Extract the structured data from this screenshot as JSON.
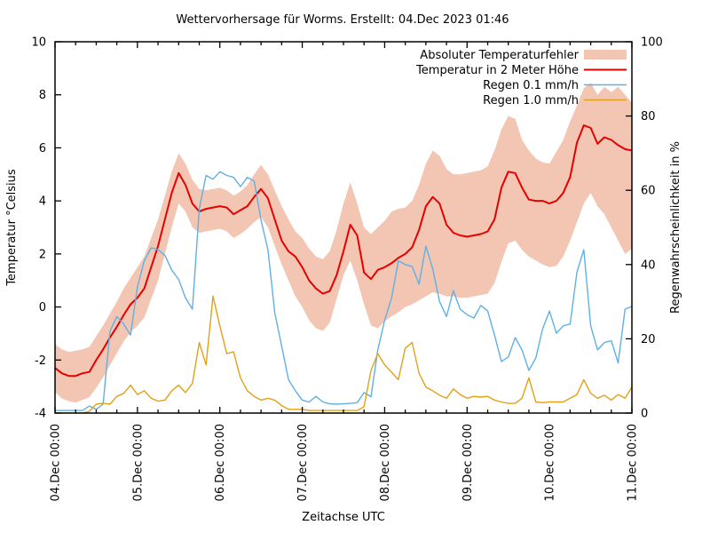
{
  "title": "Wettervorhersage für Worms. Erstellt: 04.Dec 2023 01:46",
  "colors": {
    "background": "#ffffff",
    "frame": "#000000",
    "error_band": "#f2c6b2",
    "temperature": "#e60000",
    "rain01": "#5fb0e6",
    "rain10": "#e2a117"
  },
  "chart_data": {
    "type": "line",
    "title": "Wettervorhersage für Worms. Erstellt: 04.Dec 2023 01:46",
    "xlabel": "Zeitachse UTC",
    "ylabel_left": "Temperatur °Celsius",
    "ylabel_right": "Regenwahrscheinlichkeit in %",
    "x_tick_labels": [
      "04.Dec 00:00",
      "05.Dec 00:00",
      "06.Dec 00:00",
      "07.Dec 00:00",
      "08.Dec 00:00",
      "09.Dec 00:00",
      "10.Dec 00:00",
      "11.Dec 00:00"
    ],
    "x_major_tick_hours": 24,
    "x_minor_tick_hours": 6,
    "x_range_hours": [
      0,
      168
    ],
    "y_left_ticks": [
      -4,
      -2,
      0,
      2,
      4,
      6,
      8,
      10
    ],
    "y_left_range": [
      -4,
      10
    ],
    "y_right_ticks": [
      0,
      20,
      40,
      60,
      80,
      100
    ],
    "y_right_range": [
      0,
      100
    ],
    "grid": false,
    "legend_position": "top-right-inside",
    "hours_step": 2,
    "series": [
      {
        "name": "Absoluter Temperaturfehler",
        "type": "band",
        "axis": "left",
        "color": "#f2c6b2",
        "upper": [
          -1.4,
          -1.6,
          -1.7,
          -1.65,
          -1.6,
          -1.5,
          -1.1,
          -0.7,
          -0.25,
          0.2,
          0.7,
          1.1,
          1.5,
          1.9,
          2.6,
          3.3,
          4.2,
          5.1,
          5.8,
          5.4,
          4.8,
          4.45,
          4.4,
          4.45,
          4.5,
          4.4,
          4.2,
          4.35,
          4.6,
          5.0,
          5.35,
          5.0,
          4.4,
          3.8,
          3.3,
          2.85,
          2.6,
          2.2,
          1.9,
          1.8,
          2.1,
          2.9,
          3.9,
          4.7,
          3.9,
          3.0,
          2.75,
          3.0,
          3.25,
          3.6,
          3.7,
          3.75,
          4.0,
          4.6,
          5.4,
          5.9,
          5.7,
          5.2,
          5.0,
          5.0,
          5.05,
          5.1,
          5.15,
          5.3,
          5.9,
          6.7,
          7.2,
          7.1,
          6.3,
          5.9,
          5.6,
          5.45,
          5.4,
          5.85,
          6.3,
          7.0,
          7.6,
          8.25,
          8.45,
          8.0,
          8.3,
          8.1,
          8.3,
          8.0,
          7.7
        ],
        "lower": [
          -3.2,
          -3.45,
          -3.55,
          -3.6,
          -3.5,
          -3.4,
          -3.05,
          -2.65,
          -2.2,
          -1.75,
          -1.3,
          -0.95,
          -0.7,
          -0.4,
          0.3,
          1.0,
          2.0,
          3.0,
          3.9,
          3.6,
          3.0,
          2.8,
          2.85,
          2.9,
          2.95,
          2.85,
          2.6,
          2.75,
          2.95,
          3.2,
          3.4,
          3.0,
          2.3,
          1.6,
          1.0,
          0.4,
          0.0,
          -0.5,
          -0.8,
          -0.9,
          -0.6,
          0.3,
          1.2,
          1.75,
          1.0,
          0.1,
          -0.7,
          -0.8,
          -0.55,
          -0.35,
          -0.2,
          0.0,
          0.1,
          0.25,
          0.4,
          0.55,
          0.5,
          0.4,
          0.4,
          0.35,
          0.35,
          0.4,
          0.45,
          0.5,
          0.9,
          1.7,
          2.4,
          2.5,
          2.15,
          1.9,
          1.75,
          1.6,
          1.5,
          1.55,
          1.9,
          2.5,
          3.2,
          3.9,
          4.3,
          3.8,
          3.5,
          3.0,
          2.5,
          2.0,
          2.2
        ]
      },
      {
        "name": "Temperatur in 2 Meter Höhe",
        "type": "line",
        "axis": "left",
        "color": "#e60000",
        "width": 2,
        "values": [
          -2.3,
          -2.5,
          -2.6,
          -2.6,
          -2.5,
          -2.45,
          -2.0,
          -1.6,
          -1.15,
          -0.75,
          -0.3,
          0.1,
          0.35,
          0.7,
          1.5,
          2.3,
          3.3,
          4.3,
          5.05,
          4.6,
          3.9,
          3.6,
          3.7,
          3.75,
          3.8,
          3.75,
          3.5,
          3.65,
          3.8,
          4.15,
          4.45,
          4.1,
          3.3,
          2.5,
          2.1,
          1.9,
          1.5,
          1.0,
          0.7,
          0.5,
          0.6,
          1.2,
          2.1,
          3.1,
          2.7,
          1.3,
          1.05,
          1.4,
          1.5,
          1.65,
          1.85,
          2.0,
          2.25,
          2.9,
          3.8,
          4.15,
          3.9,
          3.1,
          2.8,
          2.7,
          2.65,
          2.7,
          2.75,
          2.85,
          3.3,
          4.5,
          5.1,
          5.05,
          4.5,
          4.05,
          4.0,
          4.0,
          3.9,
          4.0,
          4.3,
          4.9,
          6.2,
          6.85,
          6.75,
          6.15,
          6.4,
          6.3,
          6.1,
          5.95,
          5.9
        ]
      },
      {
        "name": "Regen 0.1 mm/h",
        "type": "line",
        "axis": "right",
        "color": "#5fb0e6",
        "width": 1.4,
        "values": [
          0.7,
          0.7,
          0.7,
          0.7,
          0.7,
          1.9,
          1.0,
          2.4,
          22,
          26,
          24,
          21,
          34,
          41,
          44.5,
          44,
          42.5,
          38.5,
          36,
          31,
          28,
          55,
          64,
          63,
          65,
          64,
          63.5,
          61,
          63.5,
          62.5,
          52,
          44,
          27,
          18,
          9,
          6,
          3.5,
          3,
          4.5,
          3,
          2.5,
          2.4,
          2.5,
          2.6,
          2.8,
          5.5,
          4.4,
          17,
          25,
          31,
          41,
          40,
          39.5,
          34.7,
          45,
          38.8,
          30,
          26,
          33,
          28,
          26.5,
          25.6,
          29,
          27.5,
          21,
          13.9,
          15.1,
          20.3,
          17,
          11.5,
          14.8,
          22.7,
          27.5,
          21.5,
          23.5,
          24,
          38,
          44,
          23.5,
          17,
          19,
          19.5,
          13.5,
          28,
          28.7
        ]
      },
      {
        "name": "Regen 1.0 mm/h",
        "type": "line",
        "axis": "right",
        "color": "#e2a117",
        "width": 1.4,
        "values": [
          0,
          0,
          0,
          0,
          0,
          0.5,
          2.4,
          2.6,
          2.4,
          4.5,
          5.3,
          7.5,
          5,
          6,
          4,
          3.2,
          3.5,
          6,
          7.5,
          5.5,
          8,
          19,
          13,
          31.5,
          23.5,
          16,
          16.5,
          9.5,
          6,
          4.5,
          3.5,
          4,
          3.5,
          2,
          1,
          1,
          1,
          0.7,
          0.7,
          0.7,
          0.7,
          0.7,
          0.7,
          0.7,
          0.7,
          1.7,
          11.5,
          16,
          13,
          11,
          9,
          17.5,
          19,
          10.8,
          7,
          6,
          4.8,
          4,
          6.5,
          5,
          4,
          4.5,
          4.3,
          4.5,
          3.5,
          3,
          2.6,
          2.6,
          4,
          9.5,
          3,
          2.8,
          3,
          3,
          3,
          4,
          5,
          9,
          5.3,
          4,
          4.8,
          3.5,
          5,
          4,
          7
        ]
      }
    ]
  }
}
